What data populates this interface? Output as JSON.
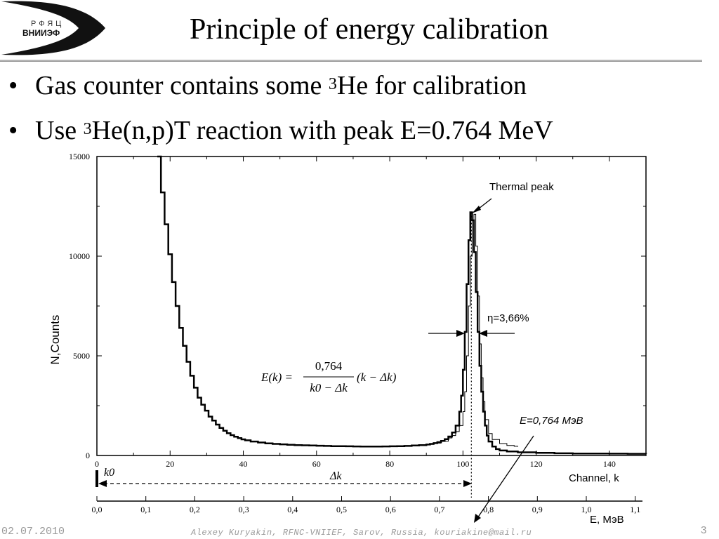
{
  "logo": {
    "line1": "РФЯЦ",
    "line2": "ВНИИЭФ"
  },
  "slide": {
    "title": "Principle of energy calibration",
    "bullets": [
      {
        "pre": "Gas counter contains some ",
        "sup": "3",
        "post": "He for calibration"
      },
      {
        "pre": "Use ",
        "sup": "3",
        "post": "He(n,p)T reaction with peak E=0.764 MeV"
      }
    ]
  },
  "footer": {
    "date": "02.07.2010",
    "author": "Alexey Kuryakin, RFNC-VNIIEF, Sarov, Russia, kouriakine@mail.ru",
    "page": "3"
  },
  "chart_data": {
    "type": "line",
    "ylabel": "N,Counts",
    "xlabel": "Channel, k",
    "x2label": "E, МэВ",
    "xlim": [
      0,
      150
    ],
    "ylim": [
      0,
      15000
    ],
    "xticks": [
      "0",
      "20",
      "40",
      "60",
      "80",
      "100",
      "120",
      "140"
    ],
    "yticks": [
      "0",
      "5000",
      "10000",
      "15000"
    ],
    "energy_ticks": [
      "0,0",
      "0,1",
      "0,2",
      "0,3",
      "0,4",
      "0,5",
      "0,6",
      "0,7",
      "0,8",
      "0,9",
      "1,0",
      "1,1"
    ],
    "peak_channel": 102.3,
    "annotations": {
      "thermal_peak": "Thermal peak",
      "eta": "η=3,66%",
      "energy_label": "E=0,764 МэВ",
      "k0": "k0",
      "dk": "Δk",
      "formula_lhs": "E(k) =",
      "formula_num": "0,764",
      "formula_den": "k0 − Δk",
      "formula_rhs": "(k − Δk)"
    },
    "series": [
      {
        "x": [
          16.5,
          17.5,
          18.5,
          19.5,
          20.5,
          21.5,
          22.5,
          23.5,
          24.5,
          25.5,
          26.5,
          27.5,
          28.5,
          29.5,
          30.5,
          31.5,
          32.5,
          33.5,
          34.5,
          35.5,
          36.5,
          37.5,
          38.5,
          39.5,
          40.5,
          42,
          44,
          46,
          48,
          50,
          52,
          54,
          56,
          58,
          60,
          62,
          64,
          66,
          68,
          70,
          72,
          74,
          76,
          78,
          80,
          82,
          84,
          86,
          88,
          90,
          91,
          92,
          93,
          94,
          95,
          96,
          97,
          98,
          99,
          99.5,
          100,
          100.5,
          101,
          101.5,
          102,
          102.5,
          103,
          103.5,
          104,
          104.5,
          105,
          105.5,
          106,
          106.5,
          107,
          108,
          109,
          110,
          112,
          115,
          120,
          125,
          130,
          135,
          140,
          145,
          150
        ],
        "y": [
          15000,
          13200,
          11600,
          10100,
          8700,
          7500,
          6400,
          5500,
          4700,
          4000,
          3400,
          2900,
          2550,
          2250,
          1950,
          1750,
          1550,
          1380,
          1240,
          1120,
          1020,
          940,
          870,
          810,
          760,
          700,
          650,
          610,
          580,
          560,
          540,
          520,
          510,
          500,
          490,
          480,
          470,
          465,
          460,
          455,
          450,
          450,
          450,
          455,
          460,
          470,
          480,
          500,
          520,
          550,
          580,
          620,
          670,
          730,
          820,
          950,
          1150,
          1500,
          2200,
          3000,
          4300,
          6200,
          8600,
          10800,
          12200,
          11800,
          10200,
          8200,
          6200,
          4500,
          3200,
          2200,
          1500,
          1000,
          700,
          450,
          320,
          250,
          200,
          160,
          130,
          110,
          100,
          95,
          90,
          85,
          80
        ]
      },
      {
        "x": [
          16.5,
          17.5,
          18.5,
          19.5,
          20.5,
          21.5,
          22.5,
          23.5,
          24.5,
          25.5,
          26.5,
          27.5,
          28.5,
          29.5,
          30.5,
          31.5,
          32.5,
          33.5,
          34.5,
          35.5,
          36.5,
          37.5,
          38.5,
          39.5,
          40.5,
          42,
          44,
          46,
          48,
          50,
          52,
          54,
          56,
          58,
          60,
          62,
          64,
          66,
          68,
          70,
          72,
          74,
          76,
          78,
          80,
          82,
          84,
          86,
          88,
          90,
          92,
          94,
          96,
          97,
          98,
          99,
          100,
          100.5,
          101,
          101.5,
          102,
          102.5,
          103,
          103.5,
          104,
          104.5,
          105,
          105.5,
          106,
          107,
          108,
          110,
          112,
          114,
          115
        ],
        "y": [
          15000,
          13200,
          11600,
          10100,
          8700,
          7500,
          6400,
          5500,
          4700,
          4000,
          3400,
          2900,
          2550,
          2250,
          1950,
          1750,
          1550,
          1380,
          1240,
          1120,
          1020,
          940,
          870,
          810,
          760,
          700,
          650,
          610,
          580,
          560,
          540,
          520,
          510,
          500,
          490,
          480,
          470,
          465,
          460,
          455,
          450,
          450,
          450,
          455,
          460,
          470,
          480,
          500,
          520,
          560,
          620,
          720,
          880,
          1000,
          1200,
          1500,
          2200,
          3200,
          5000,
          7500,
          10000,
          11800,
          12100,
          10500,
          8000,
          5600,
          3900,
          2700,
          1800,
          1100,
          800,
          600,
          500,
          460,
          440
        ]
      }
    ]
  }
}
